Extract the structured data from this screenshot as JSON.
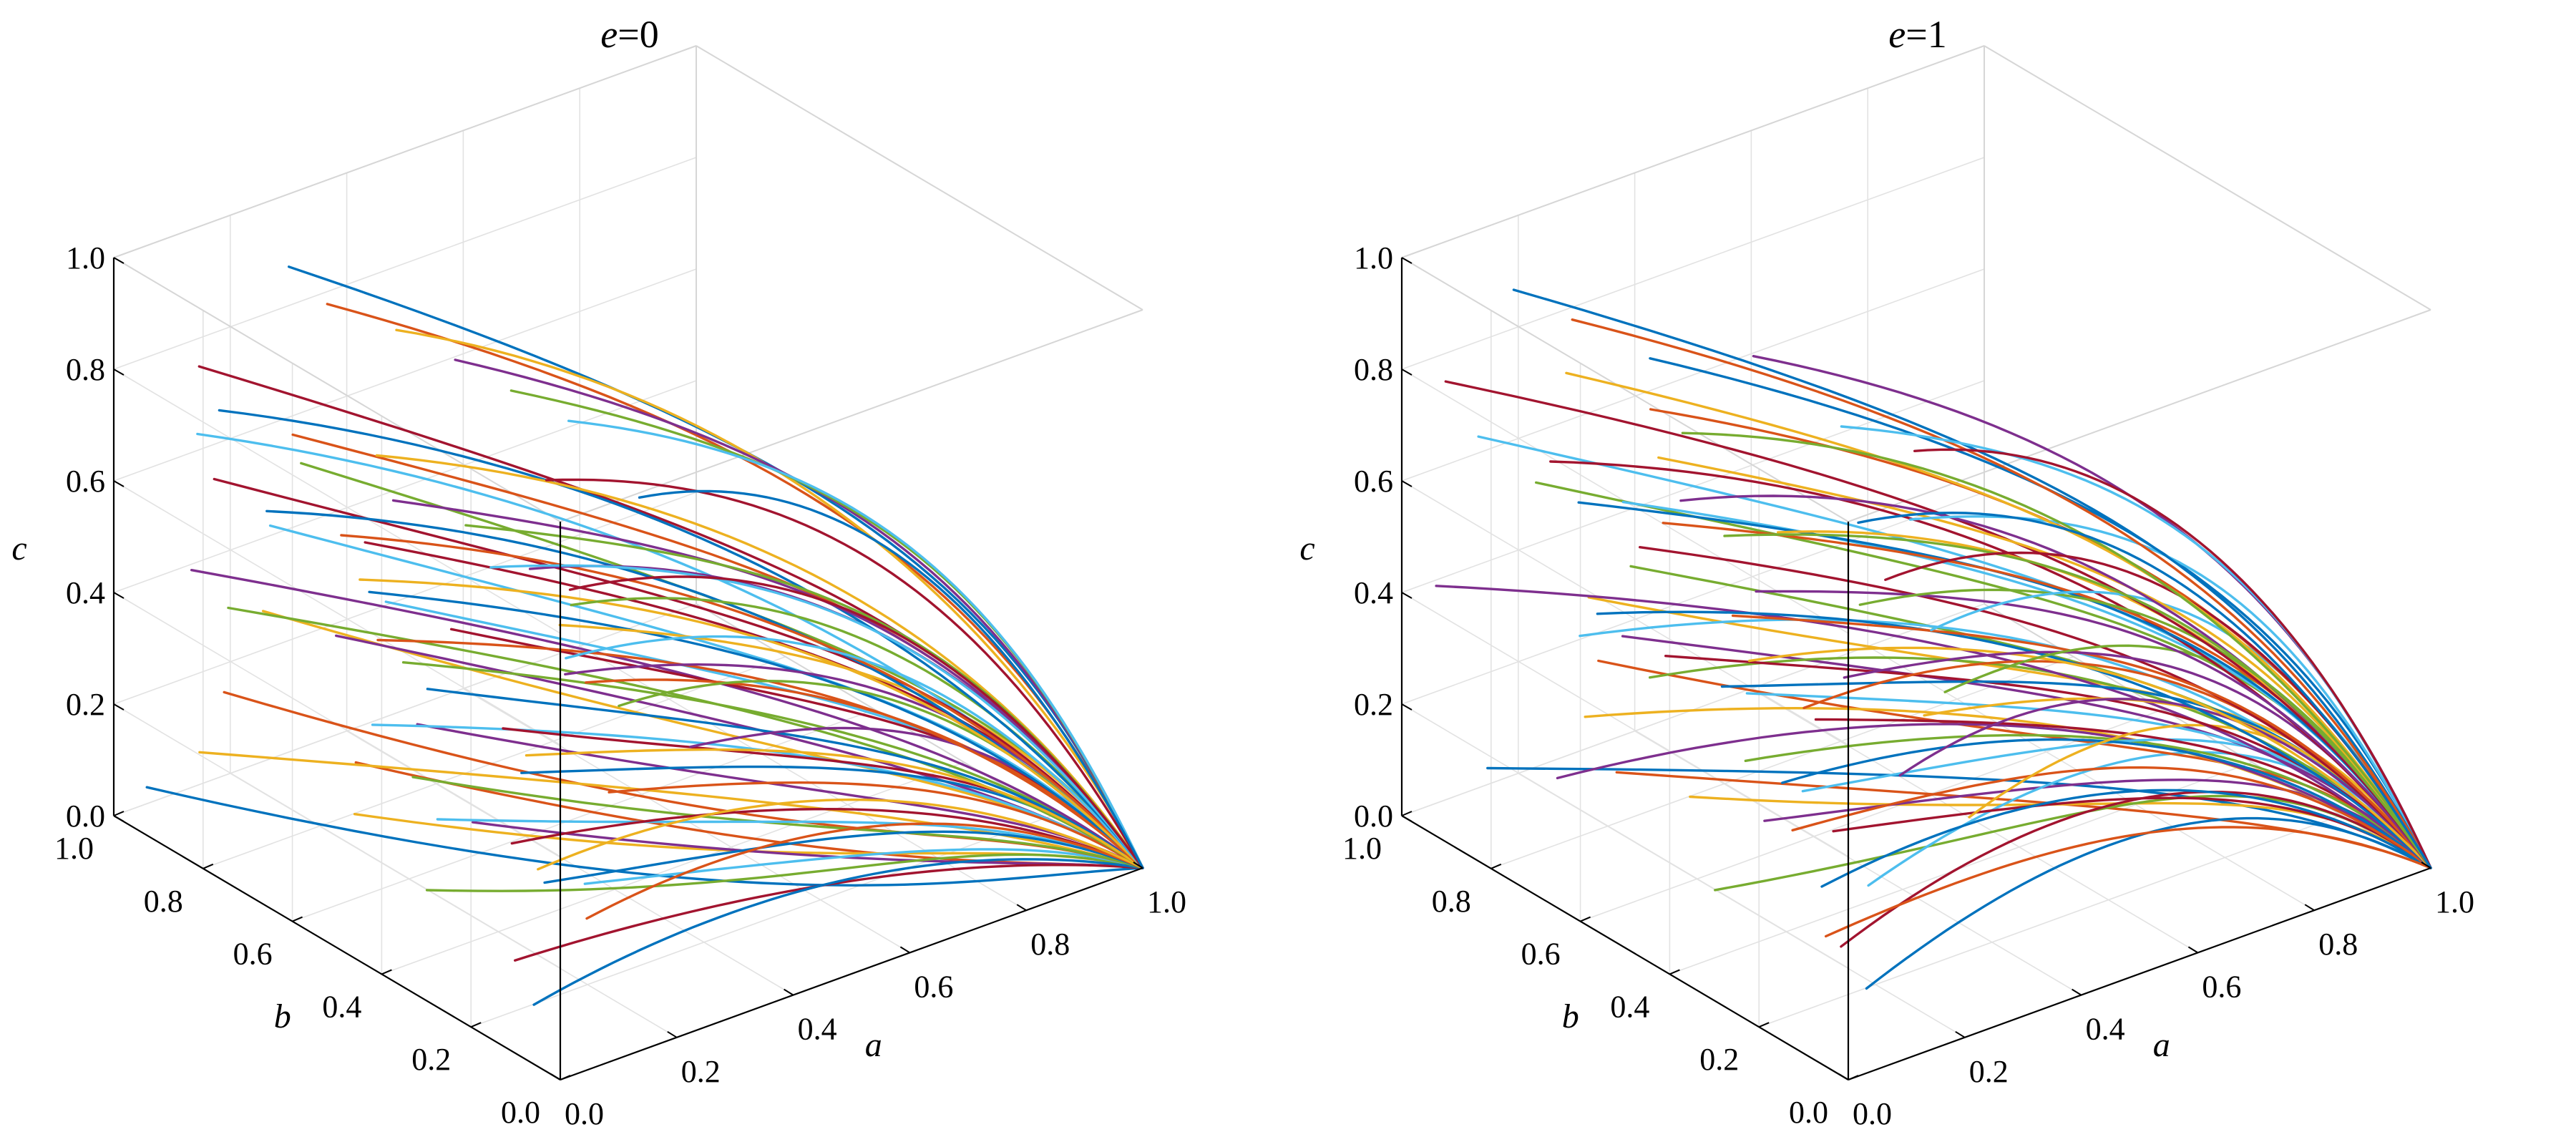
{
  "chart_data": [
    {
      "type": "line",
      "title": "e=0",
      "title_var": "e",
      "title_val": "=0",
      "xlabel": "a",
      "ylabel": "b",
      "zlabel": "c",
      "xlim": [
        0,
        1
      ],
      "ylim": [
        0,
        1
      ],
      "zlim": [
        0,
        1
      ],
      "a_ticks": [
        "0.0",
        "0.2",
        "0.4",
        "0.6",
        "0.8",
        "1.0"
      ],
      "b_ticks": [
        "0.0",
        "0.2",
        "0.4",
        "0.6",
        "0.8",
        "1.0"
      ],
      "c_ticks": [
        "0.0",
        "0.2",
        "0.4",
        "0.6",
        "0.8",
        "1.0"
      ],
      "grid": true,
      "attractor": [
        1.0,
        0.0,
        0.0
      ],
      "b_levels": [
        0.96,
        0.84,
        0.72,
        0.6,
        0.48,
        0.36,
        0.24,
        0.12
      ],
      "c_levels": [
        0.06,
        0.18,
        0.3,
        0.42,
        0.54,
        0.66,
        0.78,
        0.9
      ],
      "c_drift": 0.25
    },
    {
      "type": "line",
      "title": "e=1",
      "title_var": "e",
      "title_val": "=1",
      "xlabel": "a",
      "ylabel": "b",
      "zlabel": "c",
      "xlim": [
        0,
        1
      ],
      "ylim": [
        0,
        1
      ],
      "zlim": [
        0,
        1
      ],
      "a_ticks": [
        "0.0",
        "0.2",
        "0.4",
        "0.6",
        "0.8",
        "1.0"
      ],
      "b_ticks": [
        "0.0",
        "0.2",
        "0.4",
        "0.6",
        "0.8",
        "1.0"
      ],
      "c_ticks": [
        "0.0",
        "0.2",
        "0.4",
        "0.6",
        "0.8",
        "1.0"
      ],
      "grid": true,
      "attractor": [
        1.0,
        0.0,
        0.0
      ],
      "b_levels": [
        0.96,
        0.84,
        0.72,
        0.6,
        0.48,
        0.36,
        0.24,
        0.12
      ],
      "c_levels": [
        0.06,
        0.18,
        0.3,
        0.42,
        0.54,
        0.66,
        0.78,
        0.9
      ],
      "c_drift": 0.6
    }
  ],
  "series_colors": [
    "#0072BD",
    "#D95319",
    "#EDB120",
    "#7E2F8E",
    "#77AC30",
    "#4DBEEE",
    "#A2142F"
  ]
}
